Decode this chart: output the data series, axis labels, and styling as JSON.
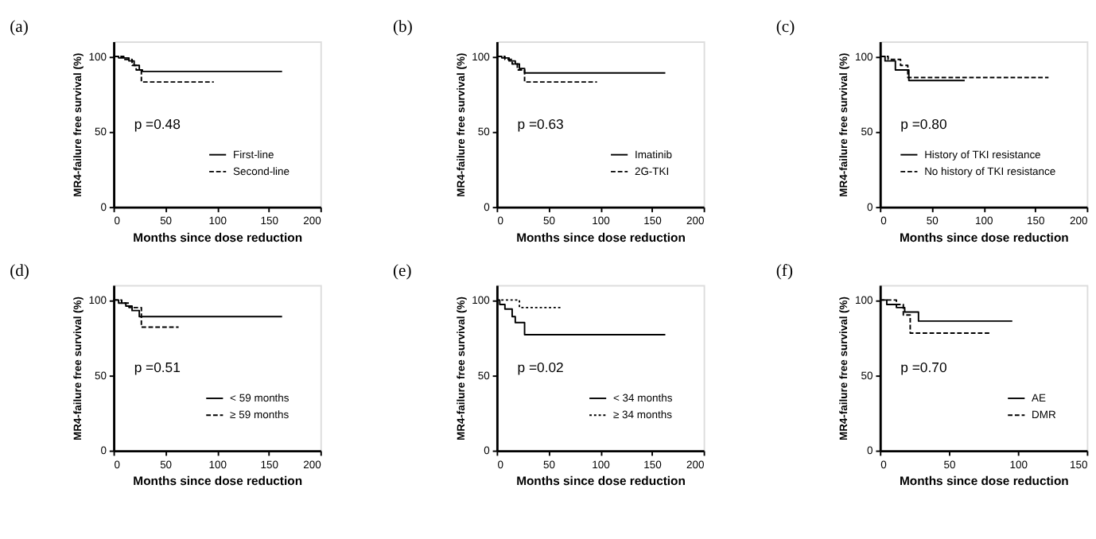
{
  "chart_data": [
    {
      "type": "step",
      "title": "(a)",
      "xlabel": "Months since dose reduction",
      "ylabel": "MR4-failure free survival (%)",
      "xlim": [
        0,
        200
      ],
      "xticks": [
        0,
        50,
        100,
        150,
        200
      ],
      "ylim": [
        0,
        110
      ],
      "yticks": [
        0,
        50,
        100
      ],
      "legend": "bottom right",
      "annotations": [
        "p =0.48"
      ],
      "series": [
        {
          "name": "First-line",
          "color": "#000000",
          "line_style": "solid",
          "x": [
            0,
            5,
            15,
            20,
            25,
            28,
            163
          ],
          "values": [
            100,
            99,
            97,
            94,
            91,
            90,
            90
          ]
        },
        {
          "name": "Second-line",
          "color": "#000000",
          "line_style": "dashed",
          "x": [
            0,
            10,
            18,
            22,
            27,
            97
          ],
          "values": [
            100,
            98,
            94,
            91,
            83,
            83
          ]
        }
      ]
    },
    {
      "type": "step",
      "title": "(b)",
      "xlabel": "Months since dose reduction",
      "ylabel": "MR4-failure free survival (%)",
      "xlim": [
        0,
        200
      ],
      "xticks": [
        0,
        50,
        100,
        150,
        200
      ],
      "ylim": [
        0,
        110
      ],
      "yticks": [
        0,
        50,
        100
      ],
      "legend": "bottom right",
      "annotations": [
        "p =0.63"
      ],
      "series": [
        {
          "name": "Imatinib",
          "color": "#000000",
          "line_style": "solid",
          "x": [
            0,
            5,
            12,
            18,
            22,
            27,
            163
          ],
          "values": [
            100,
            99,
            97,
            95,
            92,
            89,
            89
          ]
        },
        {
          "name": "2G-TKI",
          "color": "#000000",
          "line_style": "dashed",
          "x": [
            0,
            8,
            15,
            20,
            27,
            97
          ],
          "values": [
            100,
            98,
            95,
            91,
            83,
            83
          ]
        }
      ]
    },
    {
      "type": "step",
      "title": "(c)",
      "xlabel": "Months since dose reduction",
      "ylabel": "MR4-failure free survival (%)",
      "xlim": [
        0,
        200
      ],
      "xticks": [
        0,
        50,
        100,
        150,
        200
      ],
      "ylim": [
        0,
        110
      ],
      "yticks": [
        0,
        50,
        100
      ],
      "legend": "bottom right",
      "annotations": [
        "p =0.80"
      ],
      "series": [
        {
          "name": "History of TKI resistance",
          "color": "#000000",
          "line_style": "solid",
          "x": [
            0,
            5,
            15,
            28,
            82
          ],
          "values": [
            100,
            97,
            91,
            84,
            84
          ]
        },
        {
          "name": "No history of TKI resistance",
          "color": "#000000",
          "line_style": "dashed",
          "x": [
            0,
            8,
            20,
            27,
            163
          ],
          "values": [
            100,
            98,
            94,
            86,
            86
          ]
        }
      ]
    },
    {
      "type": "step",
      "title": "(d)",
      "xlabel": "Months since dose reduction",
      "ylabel": "MR4-failure free survival (%)",
      "xlim": [
        0,
        200
      ],
      "xticks": [
        0,
        50,
        100,
        150,
        200
      ],
      "ylim": [
        0,
        110
      ],
      "yticks": [
        0,
        50,
        100
      ],
      "legend": "bottom right",
      "annotations": [
        "p =0.51"
      ],
      "series": [
        {
          "name": "< 59 months",
          "color": "#000000",
          "line_style": "solid",
          "x": [
            0,
            5,
            12,
            18,
            25,
            163
          ],
          "values": [
            100,
            98,
            96,
            93,
            89,
            89
          ]
        },
        {
          "name": "≥ 59 months",
          "color": "#000000",
          "line_style": "dashed",
          "x": [
            0,
            8,
            15,
            27,
            63
          ],
          "values": [
            100,
            98,
            95,
            82,
            82
          ]
        }
      ]
    },
    {
      "type": "step",
      "title": "(e)",
      "xlabel": "Months since dose reduction",
      "ylabel": "MR4-failure free survival (%)",
      "xlim": [
        0,
        200
      ],
      "xticks": [
        0,
        50,
        100,
        150,
        200
      ],
      "ylim": [
        0,
        110
      ],
      "yticks": [
        0,
        50,
        100
      ],
      "legend": "bottom right",
      "annotations": [
        "p =0.02"
      ],
      "series": [
        {
          "name": "< 34 months",
          "color": "#000000",
          "line_style": "solid",
          "x": [
            0,
            3,
            8,
            15,
            18,
            27,
            163
          ],
          "values": [
            100,
            97,
            94,
            89,
            85,
            77,
            77
          ]
        },
        {
          "name": "≥ 34 months",
          "color": "#000000",
          "line_style": "dotted",
          "x": [
            0,
            22,
            62
          ],
          "values": [
            100,
            95,
            95
          ]
        }
      ]
    },
    {
      "type": "step",
      "title": "(f)",
      "xlabel": "Months since dose reduction",
      "ylabel": "MR4-failure free survival (%)",
      "xlim": [
        0,
        150
      ],
      "xticks": [
        0,
        50,
        100,
        150
      ],
      "ylim": [
        0,
        110
      ],
      "yticks": [
        0,
        50,
        100
      ],
      "legend": "bottom right",
      "annotations": [
        "p =0.70"
      ],
      "series": [
        {
          "name": "AE",
          "color": "#000000",
          "line_style": "solid",
          "x": [
            0,
            5,
            12,
            18,
            28,
            96
          ],
          "values": [
            100,
            97,
            95,
            92,
            86,
            86
          ]
        },
        {
          "name": "DMR",
          "color": "#000000",
          "line_style": "dashed",
          "x": [
            0,
            12,
            17,
            22,
            80
          ],
          "values": [
            100,
            97,
            90,
            78,
            78
          ]
        }
      ]
    }
  ]
}
